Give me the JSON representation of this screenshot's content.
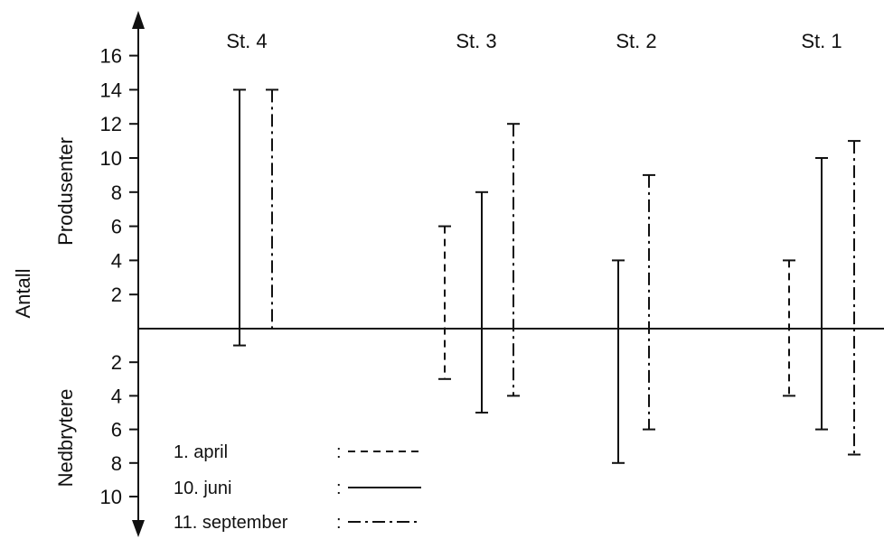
{
  "chart_data": {
    "type": "range-bar",
    "axis_title_outer": "Antall",
    "axis_title_upper": "Produsenter",
    "axis_title_lower": "Nedbrytere",
    "upper_ticks": [
      "2",
      "4",
      "6",
      "8",
      "10",
      "12",
      "14",
      "16"
    ],
    "lower_ticks": [
      "2",
      "4",
      "6",
      "8",
      "10"
    ],
    "y_range_upper": [
      0,
      16
    ],
    "y_range_lower": [
      0,
      10
    ],
    "stations": [
      {
        "label": "St. 4",
        "bars": [
          {
            "series": "10. juni",
            "producers": 14,
            "decomposers": 1
          },
          {
            "series": "11. september",
            "producers": 14,
            "decomposers": 0
          }
        ]
      },
      {
        "label": "St. 3",
        "bars": [
          {
            "series": "1. april",
            "producers": 6,
            "decomposers": 3
          },
          {
            "series": "10. juni",
            "producers": 8,
            "decomposers": 5
          },
          {
            "series": "11. september",
            "producers": 12,
            "decomposers": 4
          }
        ]
      },
      {
        "label": "St. 2",
        "bars": [
          {
            "series": "10. juni",
            "producers": 4,
            "decomposers": 8
          },
          {
            "series": "11. september",
            "producers": 9,
            "decomposers": 6
          }
        ]
      },
      {
        "label": "St. 1",
        "bars": [
          {
            "series": "1. april",
            "producers": 4,
            "decomposers": 4
          },
          {
            "series": "10. juni",
            "producers": 10,
            "decomposers": 6
          },
          {
            "series": "11. september",
            "producers": 11,
            "decomposers": 7.5
          }
        ]
      }
    ],
    "legend": [
      {
        "name": "1. april",
        "label": " 1. april",
        "separator": ":",
        "style": "dashed"
      },
      {
        "name": "10. juni",
        "label": "10. juni",
        "separator": ":",
        "style": "solid"
      },
      {
        "name": "11. september",
        "label": "11. september",
        "separator": ":",
        "style": "dash-dot"
      }
    ],
    "grid": false
  }
}
